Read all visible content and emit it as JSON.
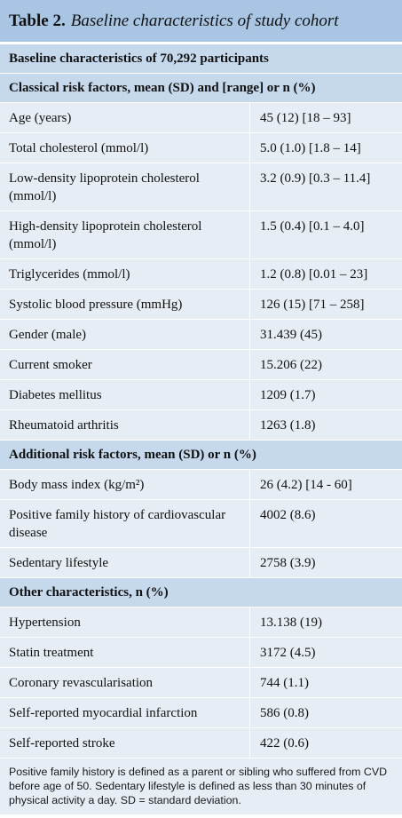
{
  "table": {
    "label": "Table 2.",
    "caption": "Baseline characteristics of study cohort",
    "header": "Baseline characteristics of 70,292 participants",
    "sections": [
      {
        "title": "Classical risk factors, mean (SD) and [range] or n (%)",
        "rows": [
          {
            "label": "Age (years)",
            "value": "45 (12) [18 – 93]"
          },
          {
            "label": "Total cholesterol (mmol/l)",
            "value": "5.0 (1.0) [1.8 – 14]"
          },
          {
            "label": "Low-density lipoprotein cholesterol (mmol/l)",
            "value": "3.2 (0.9) [0.3 – 11.4]"
          },
          {
            "label": "High-density lipoprotein cholesterol (mmol/l)",
            "value": "1.5 (0.4) [0.1 – 4.0]"
          },
          {
            "label": "Triglycerides (mmol/l)",
            "value": "1.2 (0.8) [0.01 – 23]"
          },
          {
            "label": "Systolic blood pressure (mmHg)",
            "value": "126 (15) [71 – 258]"
          },
          {
            "label": "Gender (male)",
            "value": "31.439 (45)"
          },
          {
            "label": "Current smoker",
            "value": "15.206 (22)"
          },
          {
            "label": "Diabetes mellitus",
            "value": "1209 (1.7)"
          },
          {
            "label": "Rheumatoid arthritis",
            "value": "1263 (1.8)"
          }
        ]
      },
      {
        "title": "Additional risk factors, mean (SD) or n (%)",
        "rows": [
          {
            "label": "Body mass index (kg/m²)",
            "value": "26 (4.2) [14 - 60]"
          },
          {
            "label": "Positive family history of cardiovascular disease",
            "value": "4002 (8.6)"
          },
          {
            "label": "Sedentary lifestyle",
            "value": "2758 (3.9)"
          }
        ]
      },
      {
        "title": "Other characteristics, n (%)",
        "rows": [
          {
            "label": "Hypertension",
            "value": "13.138 (19)"
          },
          {
            "label": "Statin treatment",
            "value": "3172 (4.5)"
          },
          {
            "label": "Coronary revascularisation",
            "value": "744 (1.1)"
          },
          {
            "label": "Self-reported myocardial infarction",
            "value": "586 (0.8)"
          },
          {
            "label": "Self-reported stroke",
            "value": "422 (0.6)"
          }
        ]
      }
    ],
    "footnote": "Positive family history is defined as a parent or sibling who suffered from CVD before age of 50. Sedentary lifestyle is defined as less than 30 minutes of physical activity a day. SD = standard deviation."
  }
}
